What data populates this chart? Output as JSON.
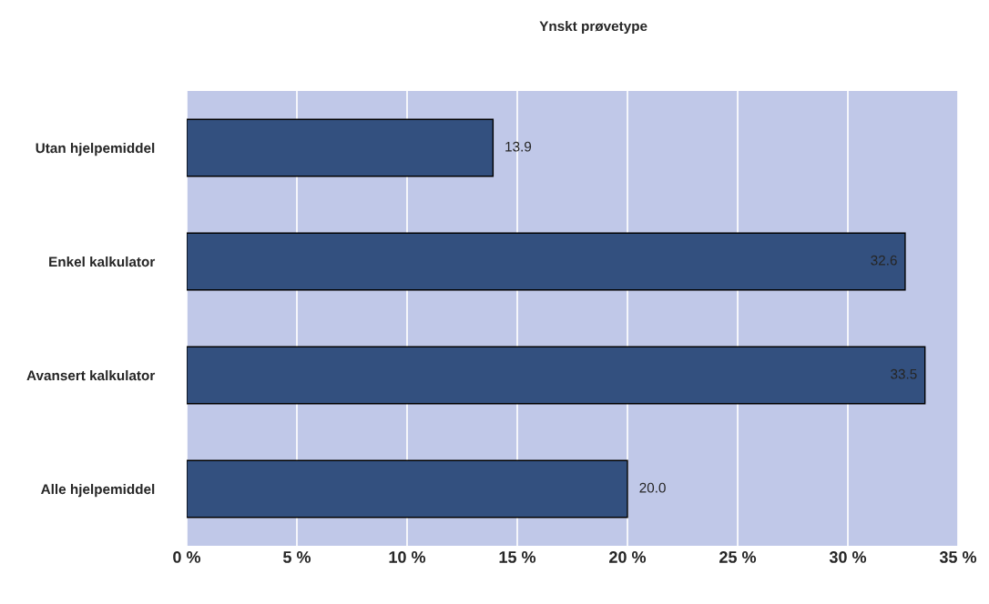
{
  "chart_data": {
    "type": "bar",
    "orientation": "horizontal",
    "title": "Ynskt prøvetype",
    "categories": [
      "Utan hjelpemiddel",
      "Enkel kalkulator",
      "Avansert kalkulator",
      "Alle hjelpemiddel"
    ],
    "values": [
      13.9,
      32.6,
      33.5,
      20.0
    ],
    "value_labels": [
      "13.9",
      "32.6",
      "33.5",
      "20.0"
    ],
    "color": "#33507f",
    "xlim": [
      0,
      35
    ],
    "xticks": [
      {
        "value": 0,
        "label": "0 %"
      },
      {
        "value": 5,
        "label": "5 %"
      },
      {
        "value": 10,
        "label": "10 %"
      },
      {
        "value": 15,
        "label": "15 %"
      },
      {
        "value": 20,
        "label": "20 %"
      },
      {
        "value": 25,
        "label": "25 %"
      },
      {
        "value": 30,
        "label": "30 %"
      },
      {
        "value": 35,
        "label": "35 %"
      }
    ],
    "grid": "x",
    "legend": false
  }
}
